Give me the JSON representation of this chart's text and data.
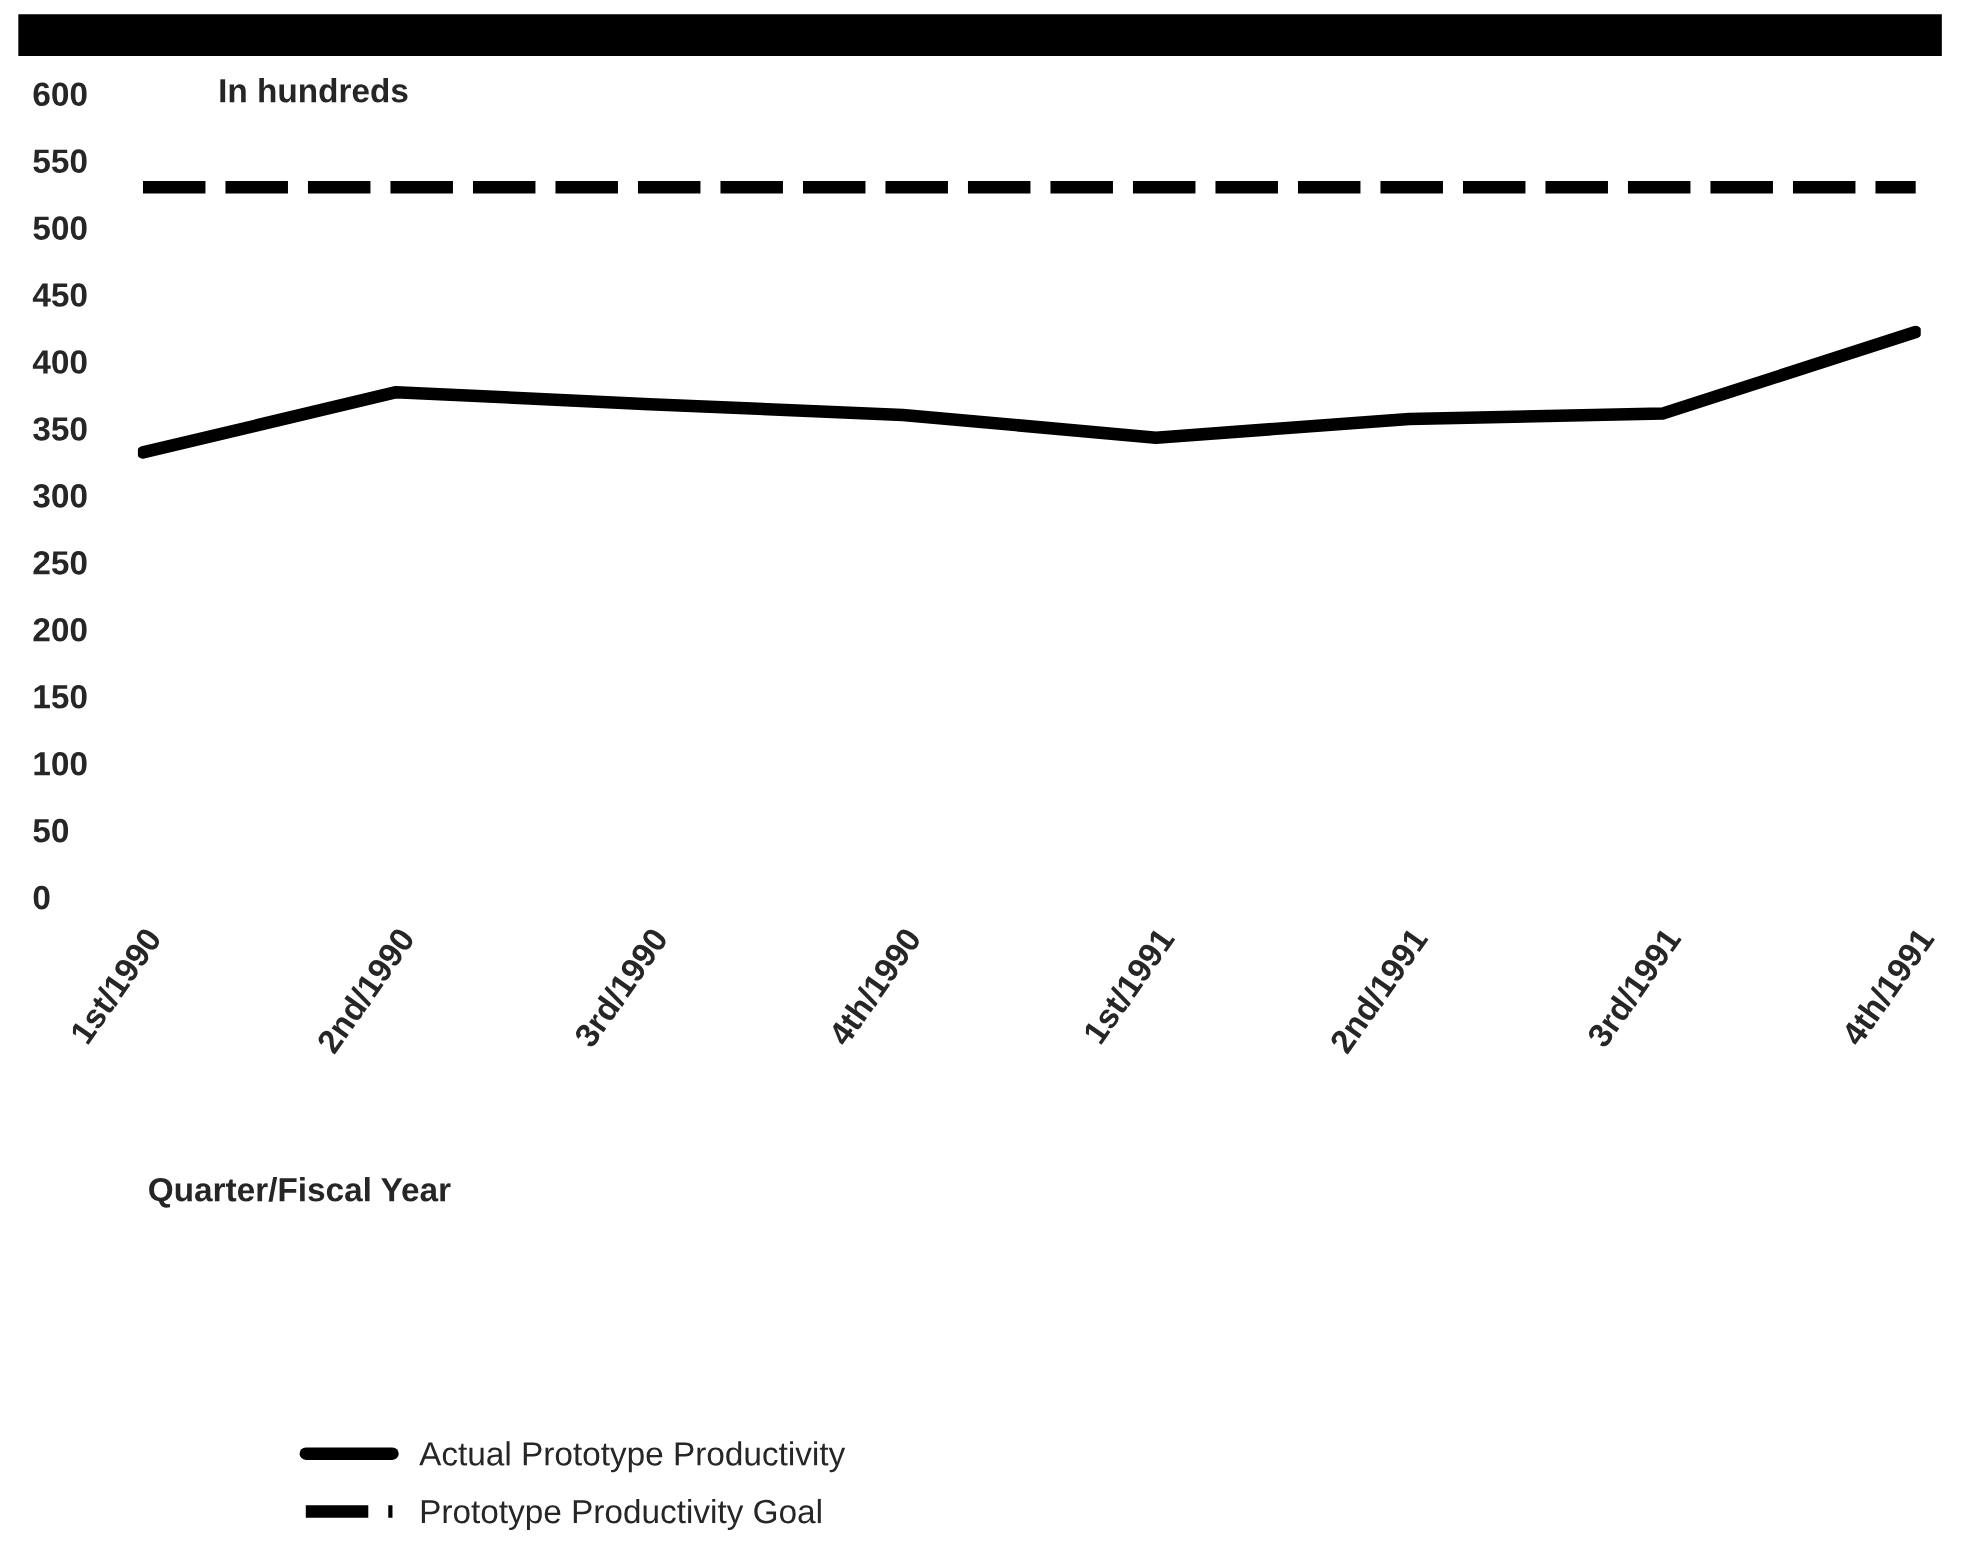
{
  "chart_data": {
    "type": "line",
    "ylabel": "In hundreds",
    "xlabel": "Quarter/Fiscal Year",
    "categories": [
      "1st/1990",
      "2nd/1990",
      "3rd/1990",
      "4th/1990",
      "1st/1991",
      "2nd/1991",
      "3rd/1991",
      "4th/1991"
    ],
    "series": [
      {
        "name": "Actual Prototype Productivity",
        "color": "#000000",
        "line_style": "solid",
        "values": [
          332,
          377,
          368,
          360,
          343,
          357,
          361,
          422
        ]
      },
      {
        "name": "Prototype Productivity Goal",
        "color": "#000000",
        "line_style": "dashed",
        "values": [
          530,
          530,
          530,
          530,
          530,
          530,
          530,
          530
        ]
      }
    ],
    "ylim": [
      0,
      600
    ],
    "yticks": [
      0,
      50,
      100,
      150,
      200,
      250,
      300,
      350,
      400,
      450,
      500,
      550,
      600
    ],
    "grid": false,
    "legend": "bottom left",
    "marker": "none"
  }
}
